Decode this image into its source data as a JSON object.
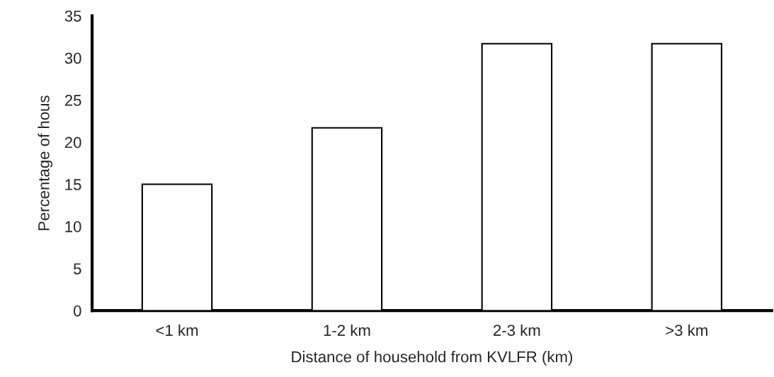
{
  "chart_data": {
    "type": "bar",
    "xlabel": "Distance of household from KVLFR (km)",
    "ylabel": "Percentage of hous",
    "categories": [
      "<1 km",
      "1-2 km",
      "2-3 km",
      ">3 km"
    ],
    "values": [
      15,
      21.7,
      31.7,
      31.7
    ],
    "color": "#ffffff",
    "ylim": [
      0,
      35
    ],
    "yticks": [
      0,
      5,
      10,
      15,
      20,
      25,
      30,
      35
    ],
    "grid": false
  }
}
